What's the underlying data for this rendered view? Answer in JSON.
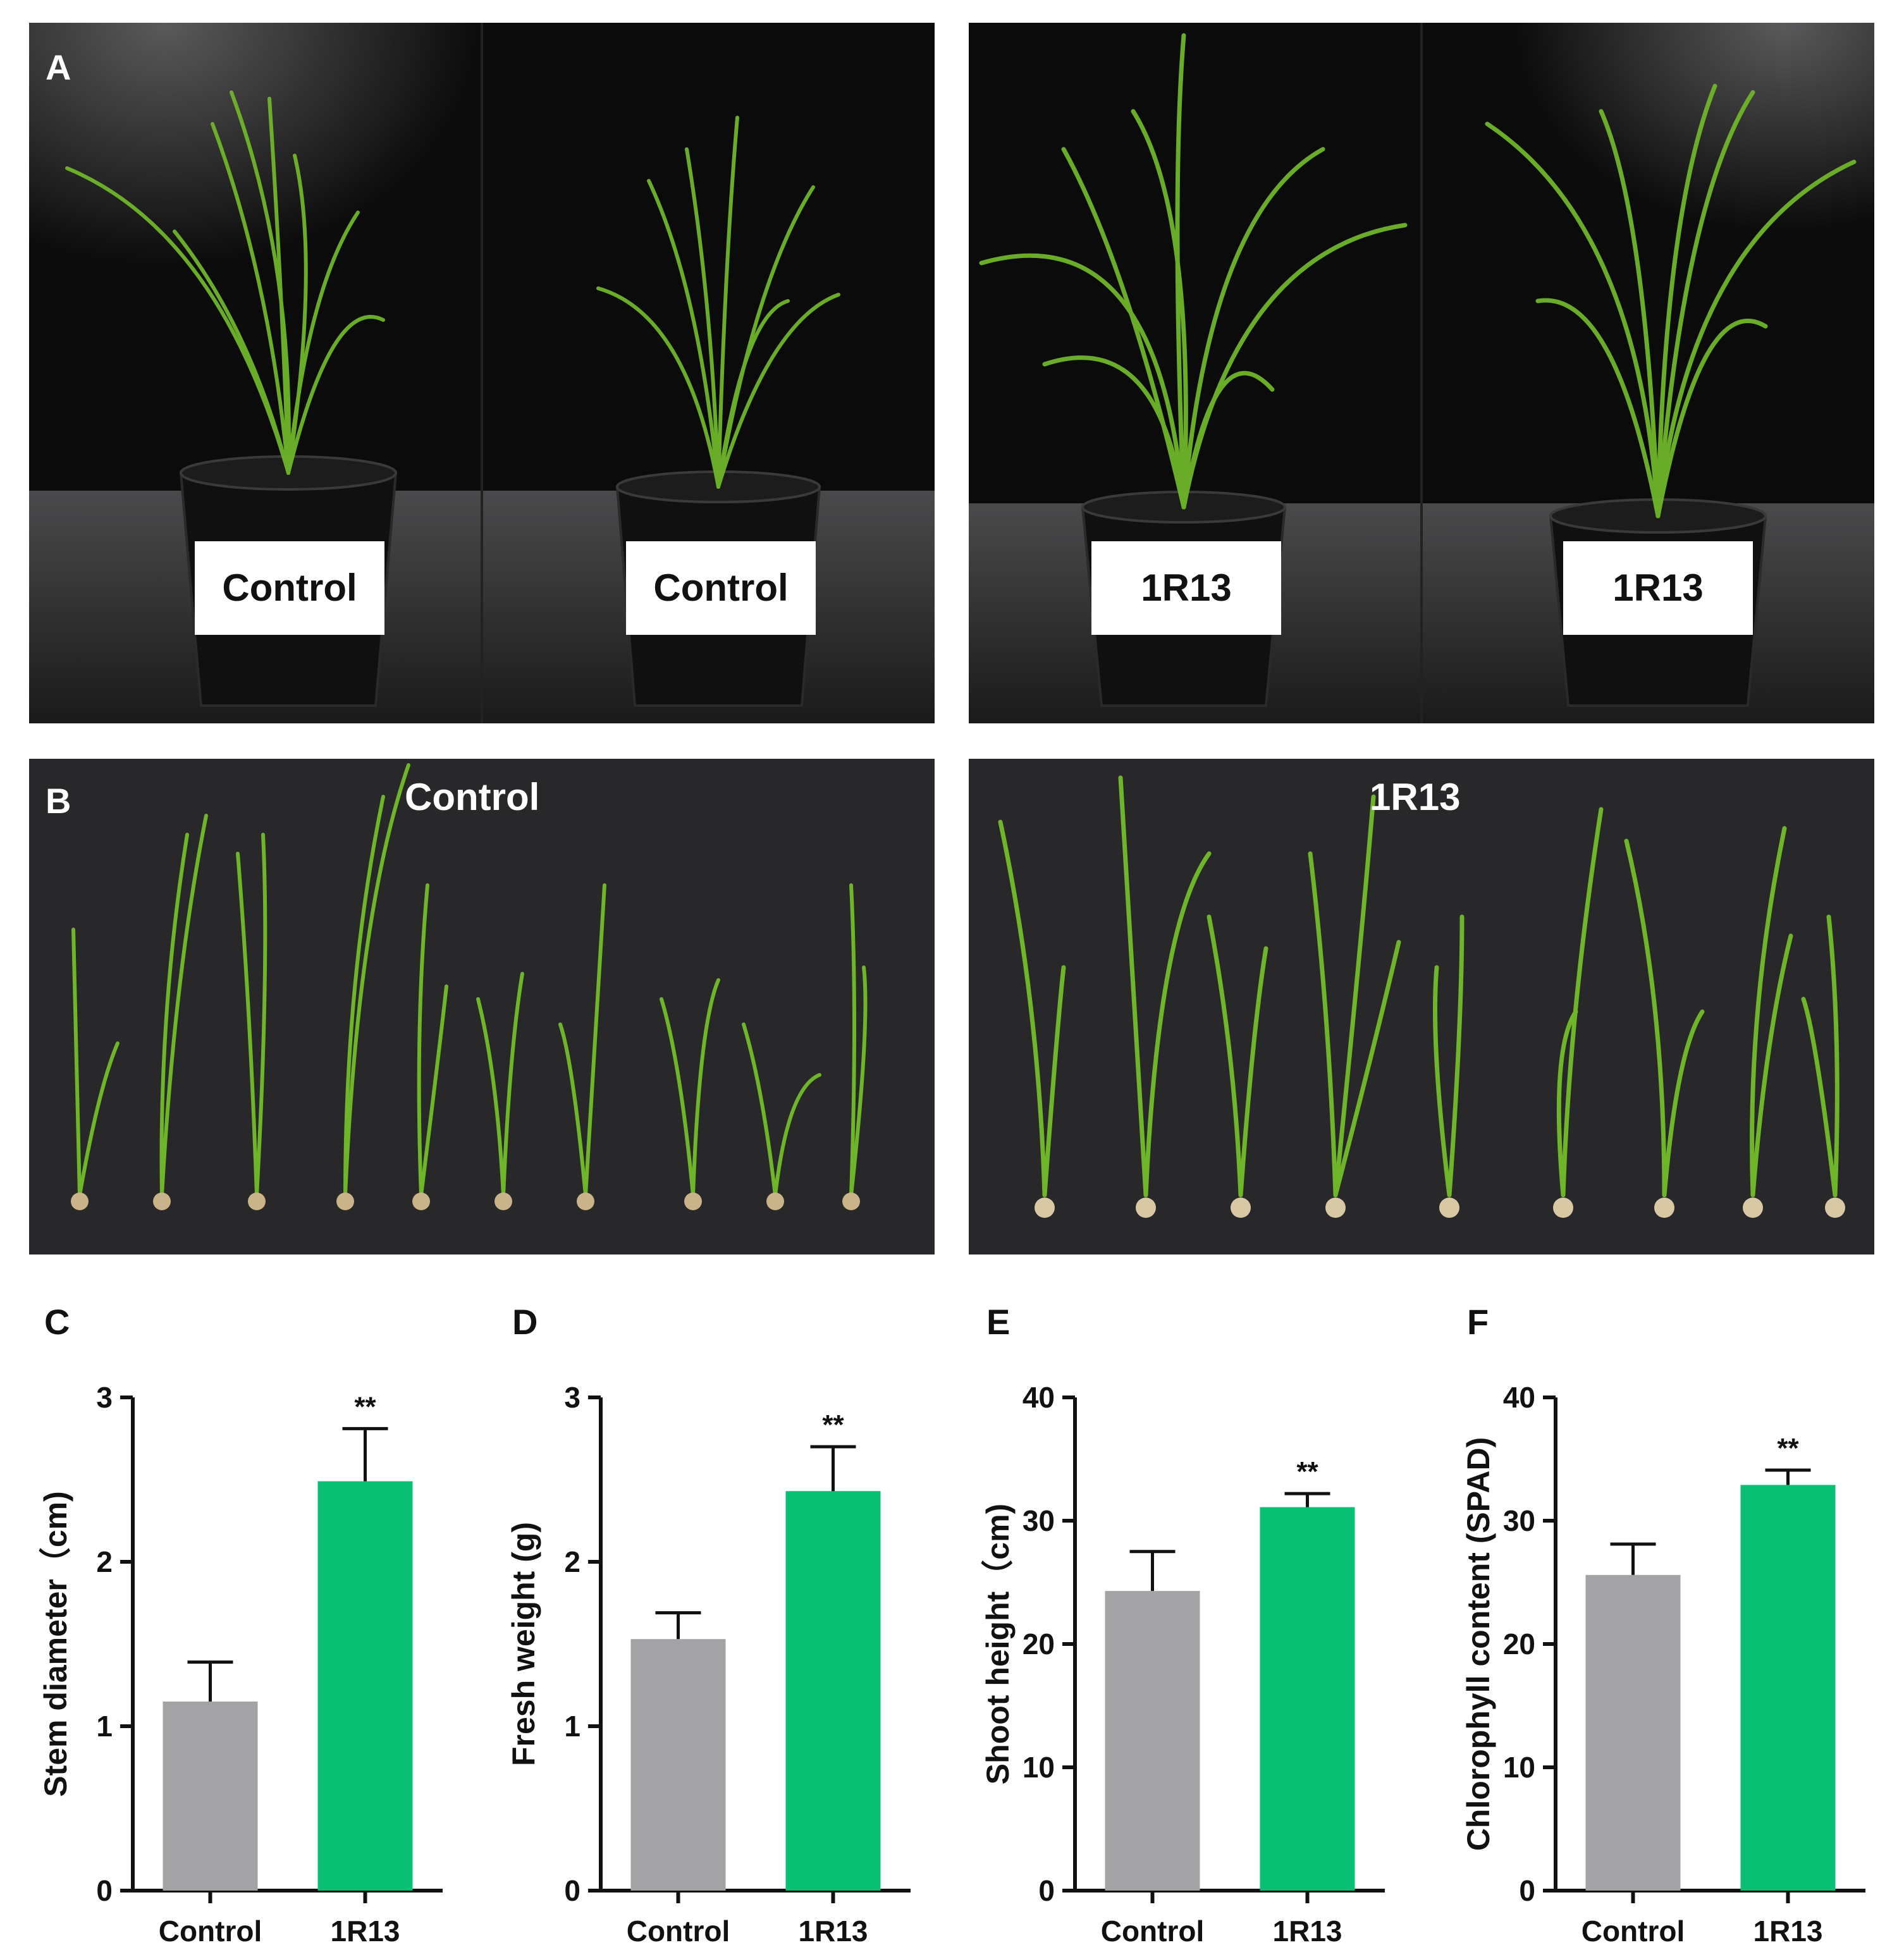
{
  "panel_a": {
    "letter": "A",
    "labels": [
      "Control",
      "Control",
      "1R13",
      "1R13"
    ]
  },
  "panel_b": {
    "letter": "B",
    "left_title": "Control",
    "right_title": "1R13"
  },
  "colors": {
    "control_bar": "#a3a3a6",
    "treatment_bar": "#08bf74",
    "plant_green": "#6fb52a",
    "photo_background": "#0b0b0c"
  },
  "chart_data": [
    {
      "letter": "C",
      "type": "bar",
      "categories": [
        "Control",
        "1R13"
      ],
      "values": [
        1.15,
        2.49
      ],
      "errors": [
        0.24,
        0.32
      ],
      "significance": [
        "",
        "**"
      ],
      "ylabel": "Stem diameter（cm)",
      "ylim": [
        0,
        3
      ],
      "yticks": [
        0,
        1,
        2,
        3
      ]
    },
    {
      "letter": "D",
      "type": "bar",
      "categories": [
        "Control",
        "1R13"
      ],
      "values": [
        1.53,
        2.43
      ],
      "errors": [
        0.16,
        0.27
      ],
      "significance": [
        "",
        "**"
      ],
      "ylabel": "Fresh weight (g)",
      "ylim": [
        0,
        3
      ],
      "yticks": [
        0,
        1,
        2,
        3
      ]
    },
    {
      "letter": "E",
      "type": "bar",
      "categories": [
        "Control",
        "1R13"
      ],
      "values": [
        24.3,
        31.1
      ],
      "errors": [
        3.2,
        1.1
      ],
      "significance": [
        "",
        "**"
      ],
      "ylabel": "Shoot height（cm)",
      "ylim": [
        0,
        40
      ],
      "yticks": [
        0,
        10,
        20,
        30,
        40
      ]
    },
    {
      "letter": "F",
      "type": "bar",
      "categories": [
        "Control",
        "1R13"
      ],
      "values": [
        25.6,
        32.9
      ],
      "errors": [
        2.5,
        1.2
      ],
      "significance": [
        "",
        "**"
      ],
      "ylabel": "Chlorophyll content (SPAD)",
      "ylim": [
        0,
        40
      ],
      "yticks": [
        0,
        10,
        20,
        30,
        40
      ]
    }
  ]
}
